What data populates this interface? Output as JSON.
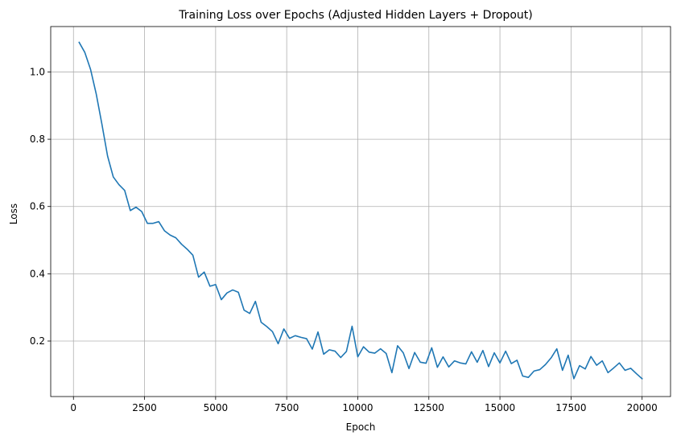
{
  "chart_data": {
    "type": "line",
    "title": "Training Loss over Epochs (Adjusted Hidden Layers + Dropout)",
    "xlabel": "Epoch",
    "ylabel": "Loss",
    "xlim": [
      -800,
      21000
    ],
    "ylim": [
      0.035,
      1.135
    ],
    "xticks": [
      0,
      2500,
      5000,
      7500,
      10000,
      12500,
      15000,
      17500,
      20000
    ],
    "xtick_labels": [
      "0",
      "2500",
      "5000",
      "7500",
      "10000",
      "12500",
      "15000",
      "17500",
      "20000"
    ],
    "yticks": [
      0.2,
      0.4,
      0.6,
      0.8,
      1.0
    ],
    "ytick_labels": [
      "0.2",
      "0.4",
      "0.6",
      "0.8",
      "1.0"
    ],
    "grid": true,
    "legend": "none",
    "line_color": "#1f77b4",
    "series": [
      {
        "x": [
          200,
          400,
          600,
          800,
          1000,
          1200,
          1400,
          1600,
          1800,
          2000,
          2200,
          2400,
          2600,
          2800,
          3000,
          3200,
          3400,
          3600,
          3800,
          4000,
          4200,
          4400,
          4600,
          4800,
          5000,
          5200,
          5400,
          5600,
          5800,
          6000,
          6200,
          6400,
          6600,
          6800,
          7000,
          7200,
          7400,
          7600,
          7800,
          8000,
          8200,
          8400,
          8600,
          8800,
          9000,
          9200,
          9400,
          9600,
          9800,
          10000,
          10200,
          10400,
          10600,
          10800,
          11000,
          11200,
          11400,
          11600,
          11800,
          12000,
          12200,
          12400,
          12600,
          12800,
          13000,
          13200,
          13400,
          13600,
          13800,
          14000,
          14200,
          14400,
          14600,
          14800,
          15000,
          15200,
          15400,
          15600,
          15800,
          16000,
          16200,
          16400,
          16600,
          16800,
          17000,
          17200,
          17400,
          17600,
          17800,
          18000,
          18200,
          18400,
          18600,
          18800,
          19000,
          19200,
          19400,
          19600,
          19800,
          20000
        ],
        "y": [
          1.088,
          1.058,
          1.008,
          0.935,
          0.845,
          0.75,
          0.688,
          0.665,
          0.648,
          0.588,
          0.598,
          0.585,
          0.55,
          0.55,
          0.555,
          0.528,
          0.515,
          0.507,
          0.488,
          0.473,
          0.455,
          0.39,
          0.405,
          0.363,
          0.368,
          0.323,
          0.343,
          0.352,
          0.345,
          0.292,
          0.282,
          0.318,
          0.256,
          0.243,
          0.228,
          0.192,
          0.236,
          0.208,
          0.216,
          0.211,
          0.207,
          0.176,
          0.227,
          0.161,
          0.174,
          0.17,
          0.151,
          0.169,
          0.244,
          0.153,
          0.183,
          0.167,
          0.164,
          0.177,
          0.163,
          0.106,
          0.186,
          0.165,
          0.118,
          0.166,
          0.137,
          0.134,
          0.18,
          0.122,
          0.153,
          0.123,
          0.141,
          0.135,
          0.132,
          0.168,
          0.137,
          0.172,
          0.124,
          0.165,
          0.135,
          0.17,
          0.133,
          0.143,
          0.096,
          0.092,
          0.111,
          0.115,
          0.13,
          0.15,
          0.177,
          0.113,
          0.158,
          0.088,
          0.127,
          0.117,
          0.154,
          0.128,
          0.141,
          0.106,
          0.12,
          0.135,
          0.113,
          0.119,
          0.103,
          0.088
        ]
      }
    ]
  }
}
